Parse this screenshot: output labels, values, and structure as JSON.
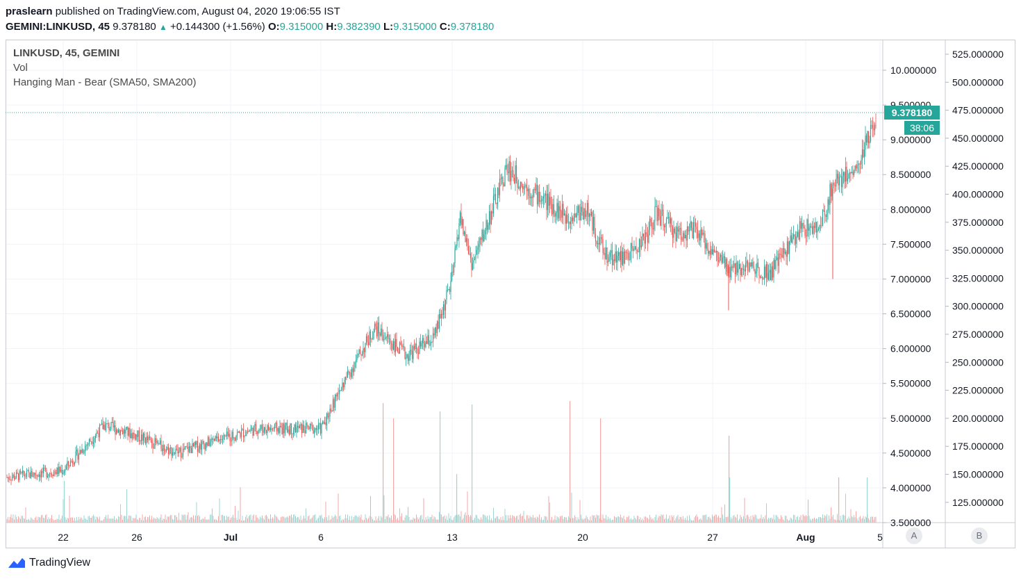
{
  "header": {
    "author": "praslearn",
    "published_text": "published on TradingView.com, August 04, 2020 19:06:55 IST",
    "symbol": "GEMINI:LINKUSD, 45",
    "last": "9.378180",
    "change": "+0.144300 (+1.56%)",
    "o_label": "O:",
    "o_value": "9.315000",
    "h_label": "H:",
    "h_value": "9.382390",
    "l_label": "L:",
    "l_value": "9.315000",
    "c_label": "C:",
    "c_value": "9.378180"
  },
  "legend": {
    "line1": "LINKUSD, 45, GEMINI",
    "line2": "Vol",
    "line3": "Hanging Man - Bear (SMA50, SMA200)"
  },
  "price_label": "9.378180",
  "timer_label": "38:06",
  "scale_buttons": {
    "a": "A",
    "b": "B"
  },
  "footer": {
    "brand": "TradingView"
  },
  "colors": {
    "up": "#26a69a",
    "down": "#ef5350",
    "vol_up": "#9fd6d1",
    "vol_down": "#f4a9a8",
    "grid": "#f0f3fa"
  },
  "chart_data": {
    "type": "candlestick",
    "price_axis": {
      "ticks": [
        "10.000000",
        "9.500000",
        "9.000000",
        "8.500000",
        "8.000000",
        "7.500000",
        "7.000000",
        "6.500000",
        "6.000000",
        "5.500000",
        "5.000000",
        "4.500000",
        "4.000000",
        "3.500000"
      ],
      "range": [
        3.5,
        10.0
      ]
    },
    "volume_axis": {
      "ticks": [
        "525.000000",
        "500.000000",
        "475.000000",
        "450.000000",
        "425.000000",
        "400.000000",
        "375.000000",
        "350.000000",
        "325.000000",
        "300.000000",
        "275.000000",
        "250.000000",
        "225.000000",
        "200.000000",
        "175.000000",
        "150.000000",
        "125.000000"
      ]
    },
    "x_ticks": [
      "22",
      "26",
      "Jul",
      "6",
      "13",
      "20",
      "27",
      "Aug",
      "5"
    ],
    "price_path": [
      {
        "x": "Jun 19",
        "y": 4.15
      },
      {
        "x": "Jun 22",
        "y": 4.25
      },
      {
        "x": "Jun 24",
        "y": 4.9
      },
      {
        "x": "Jun 26",
        "y": 4.75
      },
      {
        "x": "Jun 29",
        "y": 4.5
      },
      {
        "x": "Jul 1",
        "y": 4.65
      },
      {
        "x": "Jul 4",
        "y": 4.85
      },
      {
        "x": "Jul 7",
        "y": 4.85
      },
      {
        "x": "Jul 8",
        "y": 5.55
      },
      {
        "x": "Jul 9",
        "y": 6.3
      },
      {
        "x": "Jul 10",
        "y": 5.9
      },
      {
        "x": "Jul 12",
        "y": 6.15
      },
      {
        "x": "Jul 13",
        "y": 7.0
      },
      {
        "x": "Jul 14",
        "y": 7.9
      },
      {
        "x": "Jul 15",
        "y": 7.2
      },
      {
        "x": "Jul 16",
        "y": 8.6
      },
      {
        "x": "Jul 17",
        "y": 8.3
      },
      {
        "x": "Jul 18",
        "y": 8.1
      },
      {
        "x": "Jul 19",
        "y": 7.9
      },
      {
        "x": "Jul 20",
        "y": 8.0
      },
      {
        "x": "Jul 21",
        "y": 7.35
      },
      {
        "x": "Jul 22",
        "y": 7.3
      },
      {
        "x": "Jul 23",
        "y": 7.6
      },
      {
        "x": "Jul 24",
        "y": 7.95
      },
      {
        "x": "Jul 25",
        "y": 7.65
      },
      {
        "x": "Jul 26",
        "y": 7.7
      },
      {
        "x": "Jul 27",
        "y": 7.35
      },
      {
        "x": "Jul 28",
        "y": 7.1
      },
      {
        "x": "Jul 29",
        "y": 7.2
      },
      {
        "x": "Jul 30",
        "y": 7.1
      },
      {
        "x": "Jul 31",
        "y": 7.4
      },
      {
        "x": "Aug 1",
        "y": 7.75
      },
      {
        "x": "Aug 2",
        "y": 7.7
      },
      {
        "x": "Aug 3",
        "y": 8.4
      },
      {
        "x": "Aug 4",
        "y": 8.6
      },
      {
        "x": "Aug 4 19:00",
        "y": 9.38
      }
    ],
    "last_price": 9.37818
  }
}
